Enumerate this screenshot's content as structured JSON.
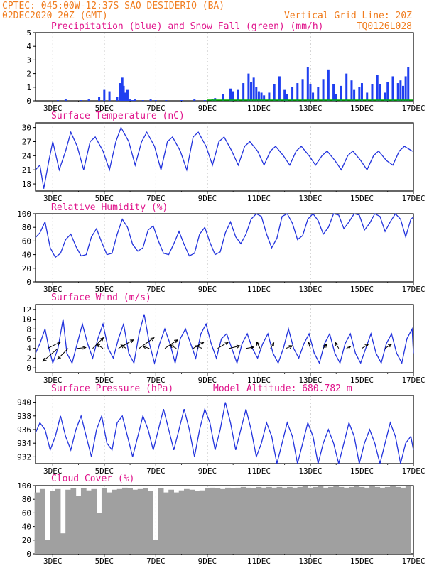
{
  "header": {
    "line1": "CPTEC:  045:00W-12:37S  SAO DESIDERIO (BA)",
    "line2": "02DEC2020 20Z (GMT)",
    "grid_note": "Vertical Grid Line: 20Z",
    "code": "TQ0126L028",
    "model_altitude": "Model Altitude: 680.782 m"
  },
  "colors": {
    "header_text": "#f07c1e",
    "panel_title": "#e0158c",
    "precip": "#1f3ff0",
    "snow": "#00b000",
    "line": "#2233dd",
    "cloud": "#a0a0a0",
    "wind_arrow": "#000000"
  },
  "x_axis": {
    "ticks": [
      "3DEC",
      "5DEC",
      "7DEC",
      "9DEC",
      "11DEC",
      "13DEC",
      "15DEC",
      "17DEC"
    ],
    "tick_days": [
      3,
      5,
      7,
      9,
      11,
      13,
      15,
      17
    ],
    "start_day": 2.33,
    "end_day": 17.0
  },
  "chart_data": [
    {
      "type": "bar",
      "title": "Precipitation (blue) and Snow Fall (green) (mm/h)",
      "ylim": [
        0,
        5
      ],
      "yticks": [
        0,
        1,
        2,
        3,
        4,
        5
      ],
      "series": [
        {
          "name": "Precipitation",
          "x": [
            3.2,
            3.5,
            4.1,
            4.4,
            4.8,
            5.0,
            5.2,
            5.5,
            5.6,
            5.7,
            5.75,
            5.8,
            5.9,
            6.0,
            6.1,
            6.2,
            6.5,
            6.8,
            7.0,
            7.4,
            8.0,
            8.5,
            8.9,
            9.2,
            9.3,
            9.6,
            9.9,
            10.0,
            10.2,
            10.4,
            10.6,
            10.7,
            10.8,
            10.9,
            11.0,
            11.1,
            11.2,
            11.4,
            11.6,
            11.8,
            12.0,
            12.1,
            12.3,
            12.5,
            12.7,
            12.9,
            13.0,
            13.1,
            13.3,
            13.5,
            13.7,
            13.9,
            14.0,
            14.2,
            14.4,
            14.6,
            14.7,
            14.9,
            15.0,
            15.2,
            15.4,
            15.6,
            15.7,
            15.9,
            16.0,
            16.2,
            16.4,
            16.5,
            16.6,
            16.7,
            16.8
          ],
          "values": [
            0.05,
            0.1,
            0.05,
            0.1,
            0.3,
            0.8,
            0.7,
            0.3,
            1.3,
            1.7,
            1.1,
            0.6,
            0.8,
            0.1,
            0.05,
            0.1,
            0.05,
            0.1,
            0.05,
            0.05,
            0.05,
            0.1,
            0.05,
            0.1,
            0.2,
            0.5,
            0.9,
            0.7,
            0.8,
            1.3,
            2.0,
            1.4,
            1.7,
            1.0,
            0.7,
            0.6,
            0.4,
            0.6,
            1.2,
            1.8,
            0.8,
            0.5,
            1.0,
            1.3,
            1.6,
            2.5,
            1.2,
            0.6,
            1.0,
            1.6,
            2.3,
            1.2,
            0.5,
            1.1,
            2.0,
            1.5,
            0.8,
            1.0,
            1.3,
            0.6,
            1.2,
            1.9,
            1.2,
            0.6,
            1.4,
            1.8,
            1.3,
            1.5,
            1.1,
            1.8,
            2.5
          ]
        },
        {
          "name": "Snow Fall",
          "x": [
            9.0,
            17.0
          ],
          "values": [
            0.0,
            0.0
          ]
        }
      ]
    },
    {
      "type": "line",
      "title": "Surface Temperature (nC)",
      "ylim": [
        16.5,
        31
      ],
      "yticks": [
        18,
        21,
        24,
        27,
        30
      ],
      "x": [
        2.33,
        2.5,
        2.65,
        2.85,
        3.0,
        3.25,
        3.5,
        3.7,
        3.95,
        4.2,
        4.45,
        4.65,
        4.95,
        5.2,
        5.45,
        5.65,
        5.95,
        6.2,
        6.45,
        6.65,
        6.95,
        7.2,
        7.45,
        7.65,
        7.95,
        8.2,
        8.45,
        8.65,
        8.95,
        9.2,
        9.45,
        9.65,
        9.95,
        10.2,
        10.45,
        10.65,
        10.95,
        11.2,
        11.45,
        11.65,
        11.95,
        12.2,
        12.45,
        12.65,
        12.95,
        13.2,
        13.45,
        13.65,
        13.95,
        14.2,
        14.45,
        14.65,
        14.95,
        15.2,
        15.45,
        15.65,
        15.95,
        16.2,
        16.45,
        16.65,
        16.95,
        17.0
      ],
      "series": [
        {
          "name": "Temperature",
          "values": [
            21,
            22,
            17,
            23,
            27,
            21,
            25,
            29,
            26,
            21,
            27,
            28,
            25,
            21,
            27,
            30,
            27,
            22,
            27,
            29,
            26,
            21,
            27,
            28,
            25,
            21,
            28,
            29,
            26,
            22,
            27,
            28,
            25,
            22,
            26,
            27,
            25,
            22,
            25,
            26,
            24,
            22,
            25,
            26,
            24,
            22,
            24,
            25,
            23,
            21,
            24,
            25,
            23,
            21,
            24,
            25,
            23,
            22,
            25,
            26,
            25,
            25
          ]
        }
      ]
    },
    {
      "type": "line",
      "title": "Relative Humidity (%)",
      "ylim": [
        0,
        100
      ],
      "yticks": [
        0,
        20,
        40,
        60,
        80,
        100
      ],
      "x": [
        2.33,
        2.5,
        2.7,
        2.9,
        3.1,
        3.3,
        3.5,
        3.7,
        3.9,
        4.1,
        4.3,
        4.5,
        4.7,
        4.9,
        5.1,
        5.3,
        5.5,
        5.7,
        5.9,
        6.1,
        6.3,
        6.5,
        6.7,
        6.9,
        7.1,
        7.3,
        7.5,
        7.7,
        7.9,
        8.1,
        8.3,
        8.5,
        8.7,
        8.9,
        9.1,
        9.3,
        9.5,
        9.7,
        9.9,
        10.1,
        10.3,
        10.5,
        10.7,
        10.9,
        11.1,
        11.3,
        11.5,
        11.7,
        11.9,
        12.1,
        12.3,
        12.5,
        12.7,
        12.9,
        13.1,
        13.3,
        13.5,
        13.7,
        13.9,
        14.1,
        14.3,
        14.5,
        14.7,
        14.9,
        15.1,
        15.3,
        15.5,
        15.7,
        15.9,
        16.1,
        16.3,
        16.5,
        16.7,
        16.9,
        17.0
      ],
      "series": [
        {
          "name": "RH",
          "values": [
            65,
            72,
            88,
            50,
            36,
            42,
            62,
            70,
            52,
            38,
            40,
            66,
            78,
            58,
            40,
            42,
            70,
            92,
            80,
            55,
            45,
            50,
            76,
            82,
            60,
            42,
            40,
            56,
            74,
            55,
            38,
            42,
            70,
            80,
            58,
            40,
            44,
            72,
            88,
            66,
            56,
            70,
            92,
            100,
            96,
            70,
            50,
            64,
            96,
            100,
            86,
            62,
            68,
            92,
            100,
            90,
            70,
            80,
            100,
            98,
            78,
            88,
            100,
            98,
            76,
            86,
            100,
            96,
            74,
            88,
            100,
            92,
            66,
            92,
            95
          ]
        }
      ]
    },
    {
      "type": "line",
      "title": "Surface Wind (m/s)",
      "ylim": [
        -1,
        13
      ],
      "yticks": [
        0,
        2,
        4,
        6,
        8,
        10,
        12
      ],
      "x": [
        2.33,
        2.5,
        2.7,
        2.85,
        3.0,
        3.2,
        3.4,
        3.55,
        3.75,
        3.95,
        4.15,
        4.35,
        4.55,
        4.75,
        4.95,
        5.15,
        5.35,
        5.55,
        5.75,
        5.95,
        6.15,
        6.35,
        6.55,
        6.75,
        6.95,
        7.15,
        7.35,
        7.55,
        7.75,
        7.95,
        8.15,
        8.35,
        8.55,
        8.75,
        8.95,
        9.15,
        9.35,
        9.55,
        9.75,
        9.95,
        10.15,
        10.35,
        10.55,
        10.75,
        10.95,
        11.15,
        11.35,
        11.55,
        11.75,
        11.95,
        12.15,
        12.35,
        12.55,
        12.75,
        12.95,
        13.15,
        13.35,
        13.55,
        13.75,
        13.95,
        14.15,
        14.35,
        14.55,
        14.75,
        14.95,
        15.15,
        15.35,
        15.55,
        15.75,
        15.95,
        16.15,
        16.35,
        16.55,
        16.75,
        16.95,
        17.0
      ],
      "series": [
        {
          "name": "Wind speed",
          "values": [
            3,
            5,
            8,
            4,
            1,
            4,
            10,
            3,
            1,
            5,
            9,
            5,
            2,
            6,
            9,
            4,
            2,
            6,
            9,
            3,
            1,
            7,
            11,
            5,
            1,
            5,
            8,
            5,
            1,
            6,
            8,
            5,
            2,
            7,
            9,
            5,
            2,
            6,
            7,
            4,
            1,
            5,
            7,
            4,
            2,
            5,
            7,
            3,
            1,
            4,
            8,
            4,
            2,
            5,
            7,
            3,
            1,
            5,
            7,
            3,
            1,
            5,
            7,
            3,
            1,
            4,
            7,
            3,
            1,
            5,
            7,
            3,
            1,
            6,
            8,
            3
          ]
        }
      ],
      "arrows": [
        {
          "x": 2.8,
          "u": 3.0,
          "v": 1.5
        },
        {
          "x": 3.2,
          "u": -3.5,
          "v": -3.0
        },
        {
          "x": 3.6,
          "u": -2.5,
          "v": -2.5
        },
        {
          "x": 3.95,
          "u": 2.0,
          "v": 0.2
        },
        {
          "x": 4.55,
          "u": 2.5,
          "v": 2.5
        },
        {
          "x": 4.95,
          "u": -1.5,
          "v": 1.0
        },
        {
          "x": 5.55,
          "u": 3.5,
          "v": 2.0
        },
        {
          "x": 5.85,
          "u": -1.2,
          "v": 0.8
        },
        {
          "x": 6.35,
          "u": 3.5,
          "v": 2.5
        },
        {
          "x": 6.75,
          "u": -1.5,
          "v": 0.5
        },
        {
          "x": 7.35,
          "u": 3.0,
          "v": 2.0
        },
        {
          "x": 7.8,
          "u": -1.5,
          "v": 0.8
        },
        {
          "x": 8.45,
          "u": 2.5,
          "v": 1.5
        },
        {
          "x": 8.8,
          "u": -1.5,
          "v": 0.6
        },
        {
          "x": 9.4,
          "u": 2.5,
          "v": 1.5
        },
        {
          "x": 9.85,
          "u": 2.5,
          "v": 0.6
        },
        {
          "x": 10.5,
          "u": 1.8,
          "v": 0.3
        },
        {
          "x": 11.05,
          "u": -0.8,
          "v": 1.5
        },
        {
          "x": 11.45,
          "u": 0.8,
          "v": 1.3
        },
        {
          "x": 12.05,
          "u": 1.5,
          "v": 0.6
        },
        {
          "x": 13.0,
          "u": -0.5,
          "v": 1.5
        },
        {
          "x": 13.5,
          "u": 0.8,
          "v": 1.0
        },
        {
          "x": 14.1,
          "u": -0.8,
          "v": 1.4
        },
        {
          "x": 14.4,
          "u": 1.0,
          "v": 0.5
        },
        {
          "x": 15.0,
          "u": 1.5,
          "v": 1.0
        },
        {
          "x": 15.9,
          "u": 1.5,
          "v": 1.0
        }
      ]
    },
    {
      "type": "line",
      "title": "Surface Pressure (hPa)",
      "ylim": [
        931,
        941
      ],
      "yticks": [
        932,
        934,
        936,
        938,
        940
      ],
      "x": [
        2.33,
        2.5,
        2.7,
        2.9,
        3.1,
        3.3,
        3.5,
        3.7,
        3.9,
        4.1,
        4.3,
        4.5,
        4.7,
        4.9,
        5.1,
        5.3,
        5.5,
        5.7,
        5.9,
        6.1,
        6.3,
        6.5,
        6.7,
        6.9,
        7.1,
        7.3,
        7.5,
        7.7,
        7.9,
        8.1,
        8.3,
        8.5,
        8.7,
        8.9,
        9.1,
        9.3,
        9.5,
        9.7,
        9.9,
        10.1,
        10.3,
        10.5,
        10.7,
        10.9,
        11.1,
        11.3,
        11.5,
        11.7,
        11.9,
        12.1,
        12.3,
        12.5,
        12.7,
        12.9,
        13.1,
        13.3,
        13.5,
        13.7,
        13.9,
        14.1,
        14.3,
        14.5,
        14.7,
        14.9,
        15.1,
        15.3,
        15.5,
        15.7,
        15.9,
        16.1,
        16.3,
        16.5,
        16.7,
        16.9,
        17.0
      ],
      "series": [
        {
          "name": "Pressure",
          "values": [
            935.5,
            937,
            936,
            933,
            935,
            938,
            935,
            933,
            936,
            938,
            935,
            932,
            936,
            938,
            934,
            933,
            937,
            938,
            935,
            932,
            935,
            938,
            936,
            933,
            936,
            939,
            936,
            933,
            936,
            939,
            936,
            932,
            936,
            939,
            937,
            933,
            936,
            940,
            937,
            933,
            936,
            939,
            936,
            932,
            934,
            937,
            935,
            931,
            934,
            937,
            935,
            931,
            934,
            937,
            935,
            931,
            934,
            936,
            934,
            931,
            934,
            937,
            935,
            931,
            934,
            936,
            934,
            931,
            934,
            937,
            935,
            931,
            934,
            935,
            933
          ]
        }
      ]
    },
    {
      "type": "bar",
      "title": "Cloud Cover (%)",
      "ylim": [
        0,
        100
      ],
      "yticks": [
        0,
        20,
        40,
        60,
        80,
        100
      ],
      "series": [
        {
          "name": "Cloud cover",
          "x": [
            2.4,
            2.6,
            2.8,
            3.0,
            3.2,
            3.4,
            3.6,
            3.8,
            4.0,
            4.2,
            4.4,
            4.6,
            4.8,
            5.0,
            5.2,
            5.4,
            5.6,
            5.8,
            6.0,
            6.2,
            6.4,
            6.6,
            6.8,
            7.0,
            7.2,
            7.4,
            7.6,
            7.8,
            8.0,
            8.2,
            8.4,
            8.6,
            8.8,
            9.0,
            9.2,
            9.4,
            9.6,
            9.8,
            10.0,
            10.2,
            10.4,
            10.6,
            10.8,
            11.0,
            11.2,
            11.4,
            11.6,
            11.8,
            12.0,
            12.2,
            12.4,
            12.6,
            12.8,
            13.0,
            13.2,
            13.4,
            13.6,
            13.8,
            14.0,
            14.2,
            14.4,
            14.6,
            14.8,
            15.0,
            15.2,
            15.4,
            15.6,
            15.8,
            16.0,
            16.2,
            16.4,
            16.6,
            16.8
          ],
          "values": [
            90,
            95,
            20,
            92,
            95,
            30,
            94,
            96,
            85,
            96,
            93,
            95,
            60,
            96,
            90,
            94,
            95,
            97,
            96,
            94,
            95,
            96,
            92,
            20,
            96,
            90,
            94,
            90,
            93,
            95,
            94,
            92,
            93,
            96,
            97,
            96,
            95,
            97,
            96,
            97,
            98,
            97,
            96,
            98,
            97,
            98,
            97,
            98,
            97,
            98,
            97,
            98,
            99,
            97,
            98,
            99,
            97,
            98,
            99,
            98,
            97,
            98,
            99,
            98,
            97,
            99,
            98,
            97,
            98,
            99,
            98,
            97,
            99
          ]
        }
      ]
    }
  ]
}
